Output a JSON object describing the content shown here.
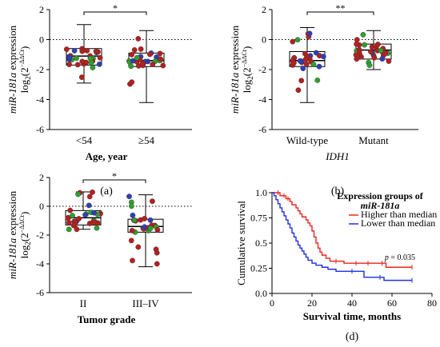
{
  "chart_data": [
    {
      "id": "a",
      "type": "box",
      "panel_label": "(a)",
      "ylabel_main": "miR-181a",
      "ylabel_suffix": " expression",
      "ylabel_log": "log",
      "ylabel_sub": "2",
      "ylabel_paren_open": "(2",
      "ylabel_sup": "−ΔΔCt",
      "ylabel_paren_close": ")",
      "xlabel": "Age, year",
      "xlabel_italic": false,
      "ylim": [
        -6,
        2
      ],
      "yticks": [
        2,
        0,
        -2,
        -4,
        -6
      ],
      "reference_line": 0,
      "groups": [
        {
          "label": "<54",
          "min": -2.9,
          "q1": -1.7,
          "median": -1.1,
          "q3": -0.6,
          "max": 1.0
        },
        {
          "label": "≥54",
          "min": -4.2,
          "q1": -1.8,
          "median": -1.4,
          "q3": -0.9,
          "max": 0.6
        }
      ],
      "significance": "*",
      "point_colors": {
        "red": "#b52020",
        "green": "#2fa02f",
        "blue": "#2e3fb5"
      }
    },
    {
      "id": "b",
      "type": "box",
      "panel_label": "(b)",
      "ylabel_main": "miR-181a",
      "ylabel_suffix": " expression",
      "ylabel_log": "log",
      "ylabel_sub": "2",
      "ylabel_paren_open": "(2",
      "ylabel_sup": "−ΔΔCt",
      "ylabel_paren_close": ")",
      "xlabel": "IDH1",
      "xlabel_italic": true,
      "ylim": [
        -6,
        2
      ],
      "yticks": [
        2,
        0,
        -2,
        -4,
        -6
      ],
      "reference_line": 0,
      "groups": [
        {
          "label": "Wild-type",
          "min": -4.2,
          "q1": -1.8,
          "median": -1.4,
          "q3": -0.8,
          "max": 0.8
        },
        {
          "label": "Mutant",
          "min": -2.0,
          "q1": -1.3,
          "median": -0.7,
          "q3": -0.3,
          "max": 0.6
        }
      ],
      "significance": "**",
      "point_colors": {
        "red": "#b52020",
        "green": "#2fa02f",
        "blue": "#2e3fb5"
      }
    },
    {
      "id": "c",
      "type": "box",
      "panel_label": "(c)",
      "ylabel_main": "miR-181a",
      "ylabel_suffix": " expression",
      "ylabel_log": "log",
      "ylabel_sub": "2",
      "ylabel_paren_open": "(2",
      "ylabel_sup": "−ΔΔCt",
      "ylabel_paren_close": ")",
      "xlabel": "Tumor grade",
      "xlabel_italic": false,
      "ylim": [
        -6,
        2
      ],
      "yticks": [
        2,
        0,
        -2,
        -4,
        -6
      ],
      "reference_line": 0,
      "groups": [
        {
          "label": "II",
          "min": -1.6,
          "q1": -1.3,
          "median": -0.8,
          "q3": -0.3,
          "max": 1.0
        },
        {
          "label": "III–IV",
          "min": -4.2,
          "q1": -1.8,
          "median": -1.4,
          "q3": -0.9,
          "max": 0.8
        }
      ],
      "significance": "*",
      "point_colors": {
        "red": "#b52020",
        "green": "#2fa02f",
        "blue": "#2e3fb5"
      }
    },
    {
      "id": "d",
      "type": "line",
      "panel_label": "(d)",
      "xlabel": "Survival time, months",
      "ylabel": "Cumulative survival",
      "xlim": [
        0,
        80
      ],
      "ylim": [
        0,
        1.0
      ],
      "xticks": [
        0,
        20,
        40,
        60,
        80
      ],
      "yticks": [
        0.0,
        0.25,
        0.5,
        0.75,
        1.0
      ],
      "ytick_labels": [
        "0.0",
        "0.25",
        "0.5",
        "0.75",
        "1.0"
      ],
      "legend_title": "Expression groups of",
      "legend_title_italic": "miR-181a",
      "legend_position": "top-right",
      "p_label_italic": "p",
      "p_label_rest": " = 0.035",
      "series": [
        {
          "name": "Higher than median",
          "color": "#e8261f",
          "x": [
            0,
            3,
            4,
            6,
            7,
            8,
            9,
            10,
            12,
            13,
            14,
            15,
            17,
            18,
            19,
            20,
            21,
            22,
            23,
            24,
            25,
            27,
            29,
            32,
            36,
            42,
            48,
            55,
            57,
            70
          ],
          "y": [
            1.0,
            1.0,
            0.97,
            0.97,
            0.94,
            0.94,
            0.91,
            0.88,
            0.85,
            0.82,
            0.79,
            0.76,
            0.73,
            0.7,
            0.67,
            0.62,
            0.56,
            0.5,
            0.45,
            0.41,
            0.38,
            0.35,
            0.32,
            0.32,
            0.3,
            0.3,
            0.3,
            0.3,
            0.26,
            0.26
          ]
        },
        {
          "name": "Lower than median",
          "color": "#1f2fe0",
          "x": [
            0,
            1,
            2,
            3,
            4,
            5,
            6,
            7,
            8,
            9,
            10,
            11,
            12,
            13,
            14,
            15,
            16,
            17,
            18,
            20,
            22,
            25,
            28,
            32,
            40,
            46,
            54,
            56,
            70
          ],
          "y": [
            1.0,
            0.97,
            0.93,
            0.89,
            0.85,
            0.81,
            0.77,
            0.73,
            0.69,
            0.65,
            0.6,
            0.56,
            0.52,
            0.48,
            0.45,
            0.42,
            0.39,
            0.36,
            0.33,
            0.3,
            0.28,
            0.26,
            0.24,
            0.22,
            0.22,
            0.16,
            0.16,
            0.13,
            0.13
          ]
        }
      ]
    }
  ]
}
